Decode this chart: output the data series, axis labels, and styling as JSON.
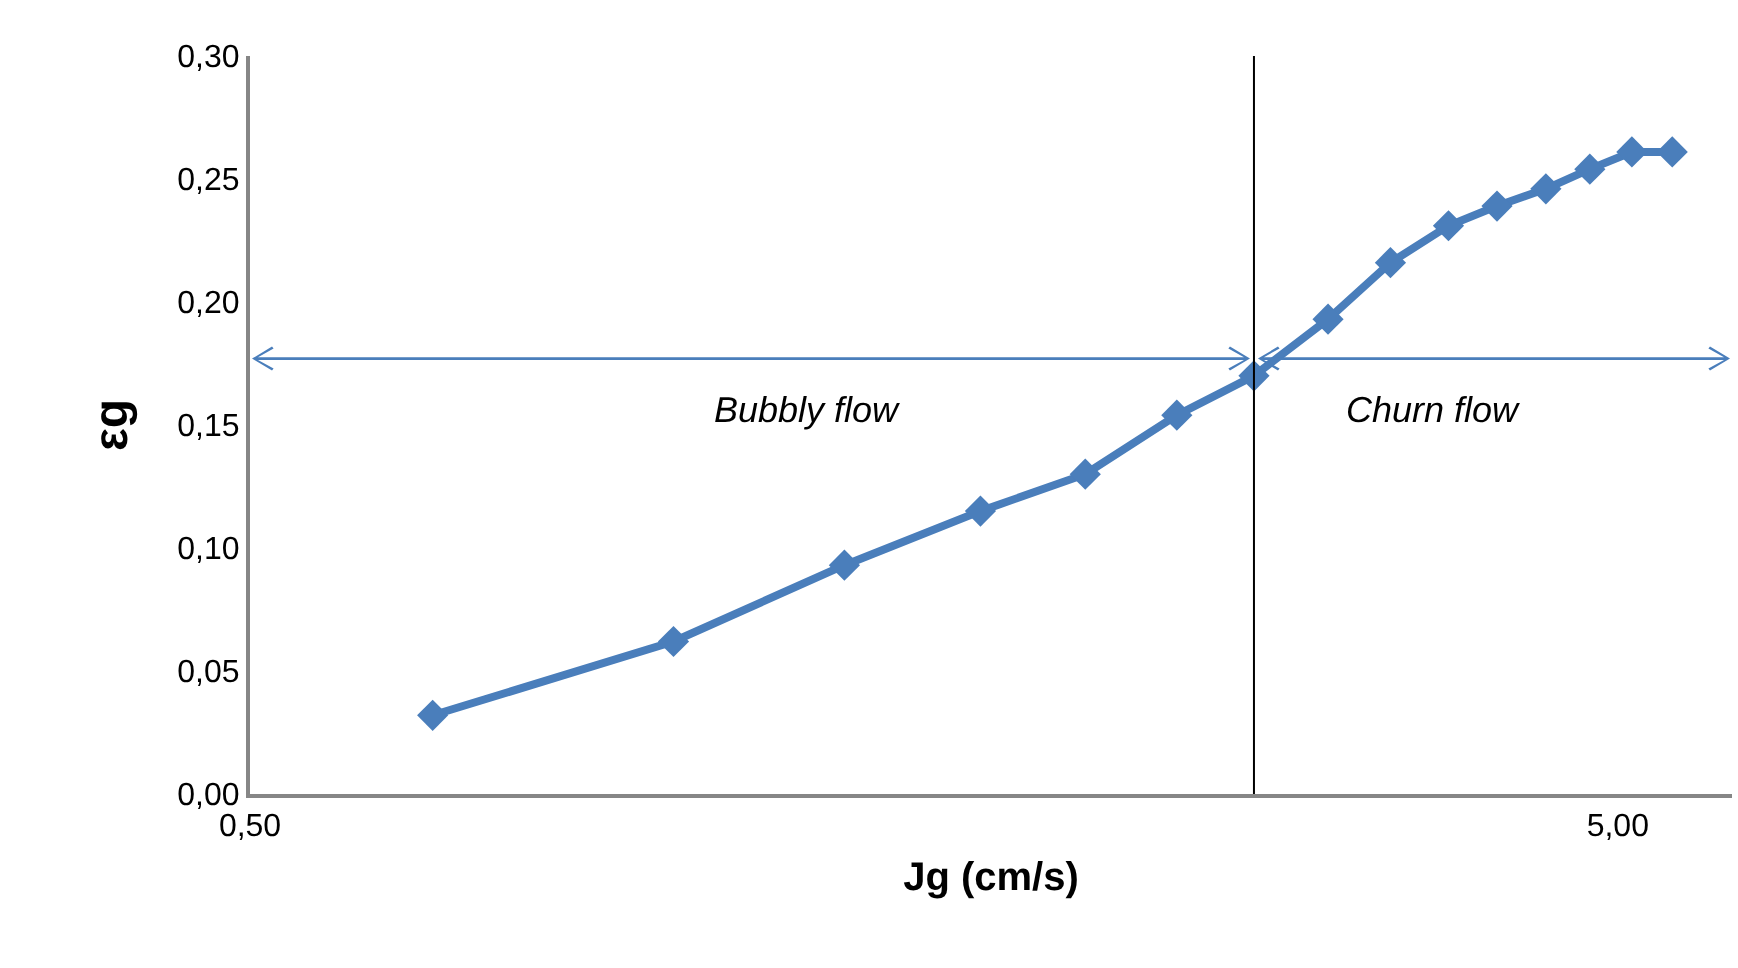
{
  "chart_data": {
    "type": "line",
    "xlabel": "Jg (cm/s)",
    "ylabel": "εg",
    "log": "x",
    "x": [
      0.68,
      1.02,
      1.36,
      1.71,
      2.04,
      2.38,
      2.71,
      3.07,
      3.41,
      3.76,
      4.08,
      4.43,
      4.77,
      5.12,
      5.48
    ],
    "series": [
      {
        "color": "#4a7ebb",
        "values": [
          0.032,
          0.062,
          0.093,
          0.115,
          0.13,
          0.154,
          0.17,
          0.193,
          0.216,
          0.231,
          0.239,
          0.246,
          0.254,
          0.261,
          0.261
        ]
      }
    ],
    "xlim": [
      0.5,
      6.06
    ],
    "xticks": [
      {
        "value": 0.5,
        "label": "0,50"
      },
      {
        "value": 5,
        "label": "5,00"
      }
    ],
    "ylim": [
      0,
      0.3
    ],
    "yticks": [
      {
        "value": 0,
        "label": "0,00"
      },
      {
        "value": 0.05,
        "label": "0,05"
      },
      {
        "value": 0.1,
        "label": "0,10"
      },
      {
        "value": 0.15,
        "label": "0,15"
      },
      {
        "value": 0.2,
        "label": "0,20"
      },
      {
        "value": 0.25,
        "label": "0,25"
      },
      {
        "value": 0.3,
        "label": "0,30"
      }
    ],
    "ref_lines": [
      {
        "axis": "x",
        "value": 2.71,
        "color": "#000000"
      }
    ],
    "annotations": [
      "Bubbly flow",
      "Churn flow"
    ],
    "grid": false,
    "marker": "diamond",
    "line_style": "solid"
  }
}
